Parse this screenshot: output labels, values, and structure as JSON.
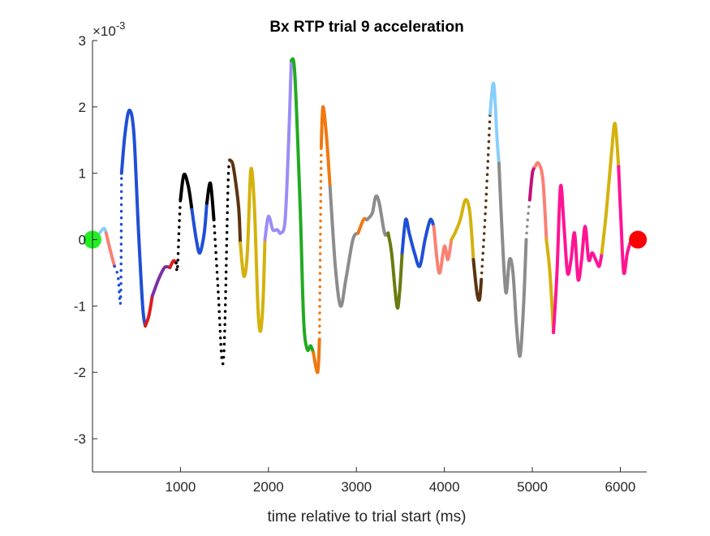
{
  "chart_data": {
    "type": "line",
    "title": "Bx  RTP trial 9 acceleration",
    "xlabel": "time relative to trial start (ms)",
    "ylabel": "",
    "y_exponent_label": "×10",
    "y_exponent_power": "-3",
    "xlim": [
      0,
      6300
    ],
    "ylim": [
      -3.5,
      3.0
    ],
    "xticks": [
      1000,
      2000,
      3000,
      4000,
      5000,
      6000
    ],
    "xtick_labels": [
      "1000",
      "2000",
      "3000",
      "4000",
      "5000",
      "6000"
    ],
    "yticks": [
      -3,
      -2,
      -1,
      0,
      1,
      2,
      3
    ],
    "ytick_labels": [
      "-3",
      "-2",
      "-1",
      "0",
      "1",
      "2",
      "3"
    ],
    "grid": false,
    "legend": "none",
    "series": [
      {
        "color": "#87CEFA",
        "style": "solid",
        "points": [
          [
            80,
            0.1
          ],
          [
            130,
            0.17
          ],
          [
            155,
            0.1
          ]
        ]
      },
      {
        "color": "#FA8072",
        "style": "solid",
        "points": [
          [
            155,
            0.1
          ],
          [
            200,
            -0.15
          ],
          [
            250,
            -0.4
          ]
        ]
      },
      {
        "color": "#1F4FD6",
        "style": "dotted",
        "points": [
          [
            250,
            -0.4
          ],
          [
            290,
            -0.55
          ],
          [
            320,
            -0.9
          ],
          [
            330,
            1.0
          ]
        ]
      },
      {
        "color": "#1F4FD6",
        "style": "solid",
        "points": [
          [
            330,
            1.0
          ],
          [
            370,
            1.6
          ],
          [
            420,
            1.95
          ],
          [
            470,
            1.6
          ],
          [
            520,
            0.2
          ],
          [
            570,
            -1.0
          ],
          [
            600,
            -1.3
          ]
        ]
      },
      {
        "color": "#E01B1B",
        "style": "solid",
        "points": [
          [
            600,
            -1.3
          ],
          [
            640,
            -1.15
          ],
          [
            680,
            -0.85
          ]
        ]
      },
      {
        "color": "#7B2FA5",
        "style": "solid",
        "points": [
          [
            680,
            -0.85
          ],
          [
            750,
            -0.6
          ],
          [
            820,
            -0.42
          ],
          [
            880,
            -0.42
          ]
        ]
      },
      {
        "color": "#E01B1B",
        "style": "solid",
        "points": [
          [
            880,
            -0.42
          ],
          [
            920,
            -0.32
          ],
          [
            950,
            -0.35
          ]
        ]
      },
      {
        "color": "#000000",
        "style": "dotted",
        "points": [
          [
            950,
            -0.35
          ],
          [
            965,
            -0.45
          ],
          [
            985,
            0.2
          ],
          [
            1000,
            0.6
          ]
        ]
      },
      {
        "color": "#000000",
        "style": "solid",
        "points": [
          [
            1000,
            0.6
          ],
          [
            1040,
            0.98
          ],
          [
            1090,
            0.8
          ],
          [
            1130,
            0.45
          ]
        ]
      },
      {
        "color": "#1F4FD6",
        "style": "solid",
        "points": [
          [
            1130,
            0.45
          ],
          [
            1180,
            0.0
          ],
          [
            1220,
            -0.2
          ],
          [
            1270,
            0.1
          ],
          [
            1300,
            0.55
          ]
        ]
      },
      {
        "color": "#000000",
        "style": "solid",
        "points": [
          [
            1300,
            0.55
          ],
          [
            1340,
            0.85
          ],
          [
            1380,
            0.3
          ]
        ]
      },
      {
        "color": "#000000",
        "style": "dotted",
        "points": [
          [
            1380,
            0.3
          ],
          [
            1430,
            -0.8
          ],
          [
            1470,
            -1.8
          ],
          [
            1500,
            -1.5
          ],
          [
            1540,
            0.8
          ],
          [
            1560,
            1.2
          ]
        ]
      },
      {
        "color": "#5C3310",
        "style": "solid",
        "points": [
          [
            1560,
            1.2
          ],
          [
            1600,
            1.1
          ],
          [
            1660,
            0.5
          ],
          [
            1680,
            -0.05
          ]
        ]
      },
      {
        "color": "#D4B20C",
        "style": "solid",
        "points": [
          [
            1680,
            -0.05
          ],
          [
            1720,
            -0.55
          ],
          [
            1760,
            -0.2
          ],
          [
            1800,
            1.05
          ],
          [
            1840,
            0.5
          ],
          [
            1880,
            -1.0
          ],
          [
            1910,
            -1.38
          ],
          [
            1940,
            -0.9
          ],
          [
            1960,
            0.0
          ]
        ]
      },
      {
        "color": "#9B8CF7",
        "style": "solid",
        "points": [
          [
            1960,
            0.0
          ],
          [
            2000,
            0.35
          ],
          [
            2050,
            0.15
          ],
          [
            2100,
            0.15
          ],
          [
            2140,
            0.1
          ],
          [
            2190,
            0.3
          ],
          [
            2230,
            1.5
          ],
          [
            2260,
            2.7
          ]
        ]
      },
      {
        "color": "#22AA22",
        "style": "solid",
        "points": [
          [
            2260,
            2.7
          ],
          [
            2300,
            2.5
          ],
          [
            2360,
            0.5
          ],
          [
            2400,
            -1.2
          ],
          [
            2440,
            -1.65
          ],
          [
            2480,
            -1.6
          ],
          [
            2510,
            -1.7
          ]
        ]
      },
      {
        "color": "#F07810",
        "style": "solid",
        "points": [
          [
            2510,
            -1.7
          ],
          [
            2560,
            -2.0
          ],
          [
            2580,
            -1.5
          ]
        ]
      },
      {
        "color": "#F07810",
        "style": "dotted",
        "points": [
          [
            2580,
            -1.5
          ],
          [
            2590,
            0.0
          ],
          [
            2600,
            1.4
          ]
        ]
      },
      {
        "color": "#F07810",
        "style": "solid",
        "points": [
          [
            2600,
            1.4
          ],
          [
            2620,
            2.0
          ],
          [
            2660,
            1.55
          ],
          [
            2700,
            0.8
          ]
        ]
      },
      {
        "color": "#8C8C8C",
        "style": "solid",
        "points": [
          [
            2700,
            0.8
          ],
          [
            2760,
            -0.4
          ],
          [
            2820,
            -1.0
          ],
          [
            2880,
            -0.6
          ],
          [
            2960,
            0.0
          ],
          [
            3020,
            0.1
          ]
        ]
      },
      {
        "color": "#F07810",
        "style": "solid",
        "points": [
          [
            3020,
            0.1
          ],
          [
            3080,
            0.3
          ],
          [
            3120,
            0.3
          ]
        ]
      },
      {
        "color": "#8C8C8C",
        "style": "solid",
        "points": [
          [
            3120,
            0.3
          ],
          [
            3180,
            0.4
          ],
          [
            3220,
            0.65
          ],
          [
            3260,
            0.55
          ],
          [
            3320,
            0.1
          ],
          [
            3360,
            0.1
          ]
        ]
      },
      {
        "color": "#6B7A0F",
        "style": "solid",
        "points": [
          [
            3360,
            0.1
          ],
          [
            3400,
            -0.2
          ],
          [
            3460,
            -1.0
          ],
          [
            3490,
            -0.8
          ],
          [
            3520,
            -0.2
          ]
        ]
      },
      {
        "color": "#1F4FD6",
        "style": "solid",
        "points": [
          [
            3520,
            -0.2
          ],
          [
            3560,
            0.3
          ],
          [
            3600,
            0.1
          ],
          [
            3660,
            -0.2
          ],
          [
            3720,
            -0.4
          ],
          [
            3780,
            0.0
          ],
          [
            3840,
            0.3
          ],
          [
            3880,
            0.2
          ]
        ]
      },
      {
        "color": "#FA8072",
        "style": "solid",
        "points": [
          [
            3880,
            0.2
          ],
          [
            3940,
            -0.5
          ],
          [
            4000,
            -0.1
          ],
          [
            4040,
            -0.3
          ],
          [
            4080,
            0.0
          ]
        ]
      },
      {
        "color": "#D4B20C",
        "style": "solid",
        "points": [
          [
            4080,
            0.0
          ],
          [
            4120,
            0.1
          ],
          [
            4180,
            0.3
          ],
          [
            4240,
            0.6
          ],
          [
            4290,
            0.4
          ],
          [
            4330,
            -0.3
          ]
        ]
      },
      {
        "color": "#5C3310",
        "style": "solid",
        "points": [
          [
            4330,
            -0.3
          ],
          [
            4370,
            -0.8
          ],
          [
            4400,
            -0.9
          ],
          [
            4420,
            -0.6
          ]
        ]
      },
      {
        "color": "#5C3310",
        "style": "dotted",
        "points": [
          [
            4420,
            -0.6
          ],
          [
            4470,
            0.5
          ],
          [
            4520,
            1.9
          ]
        ]
      },
      {
        "color": "#87CEFA",
        "style": "solid",
        "points": [
          [
            4520,
            1.9
          ],
          [
            4560,
            2.35
          ],
          [
            4600,
            1.5
          ],
          [
            4620,
            1.15
          ]
        ]
      },
      {
        "color": "#8C8C8C",
        "style": "solid",
        "points": [
          [
            4620,
            1.15
          ],
          [
            4660,
            0.0
          ],
          [
            4700,
            -0.8
          ],
          [
            4740,
            -0.3
          ],
          [
            4780,
            -0.5
          ],
          [
            4820,
            -1.3
          ],
          [
            4860,
            -1.75
          ],
          [
            4900,
            -1.0
          ],
          [
            4930,
            0.0
          ]
        ]
      },
      {
        "color": "#8C8C8C",
        "style": "dotted",
        "points": [
          [
            4930,
            0.0
          ],
          [
            4950,
            0.35
          ],
          [
            4970,
            0.6
          ]
        ]
      },
      {
        "color": "#C4107A",
        "style": "solid",
        "points": [
          [
            4970,
            0.6
          ],
          [
            5000,
            1.0
          ],
          [
            5030,
            1.1
          ]
        ]
      },
      {
        "color": "#FA8072",
        "style": "solid",
        "points": [
          [
            5030,
            1.1
          ],
          [
            5070,
            1.15
          ],
          [
            5120,
            0.9
          ],
          [
            5160,
            0.0
          ]
        ]
      },
      {
        "color": "#D4B20C",
        "style": "solid",
        "points": [
          [
            5160,
            0.0
          ],
          [
            5200,
            -0.5
          ],
          [
            5240,
            -1.4
          ]
        ]
      },
      {
        "color": "#FF1493",
        "style": "solid",
        "points": [
          [
            5240,
            -1.4
          ],
          [
            5280,
            -0.5
          ],
          [
            5320,
            0.8
          ],
          [
            5360,
            0.2
          ],
          [
            5400,
            -0.5
          ],
          [
            5440,
            -0.3
          ],
          [
            5480,
            0.1
          ],
          [
            5520,
            -0.6
          ],
          [
            5560,
            -0.3
          ],
          [
            5600,
            0.2
          ],
          [
            5640,
            -0.3
          ],
          [
            5680,
            -0.2
          ],
          [
            5720,
            -0.3
          ],
          [
            5760,
            -0.4
          ],
          [
            5790,
            -0.2
          ]
        ]
      },
      {
        "color": "#D4B20C",
        "style": "solid",
        "points": [
          [
            5790,
            -0.2
          ],
          [
            5840,
            0.4
          ],
          [
            5900,
            1.3
          ],
          [
            5940,
            1.75
          ],
          [
            5980,
            1.1
          ]
        ]
      },
      {
        "color": "#FF1493",
        "style": "solid",
        "points": [
          [
            5980,
            1.1
          ],
          [
            6010,
            0.2
          ],
          [
            6040,
            -0.5
          ],
          [
            6080,
            -0.2
          ],
          [
            6130,
            0.0
          ],
          [
            6200,
            0.0
          ]
        ]
      }
    ],
    "markers": [
      {
        "label": "start",
        "x": 0,
        "y": 0,
        "color": "#22EE22"
      },
      {
        "label": "end",
        "x": 6200,
        "y": 0,
        "color": "#FF0000"
      }
    ]
  }
}
